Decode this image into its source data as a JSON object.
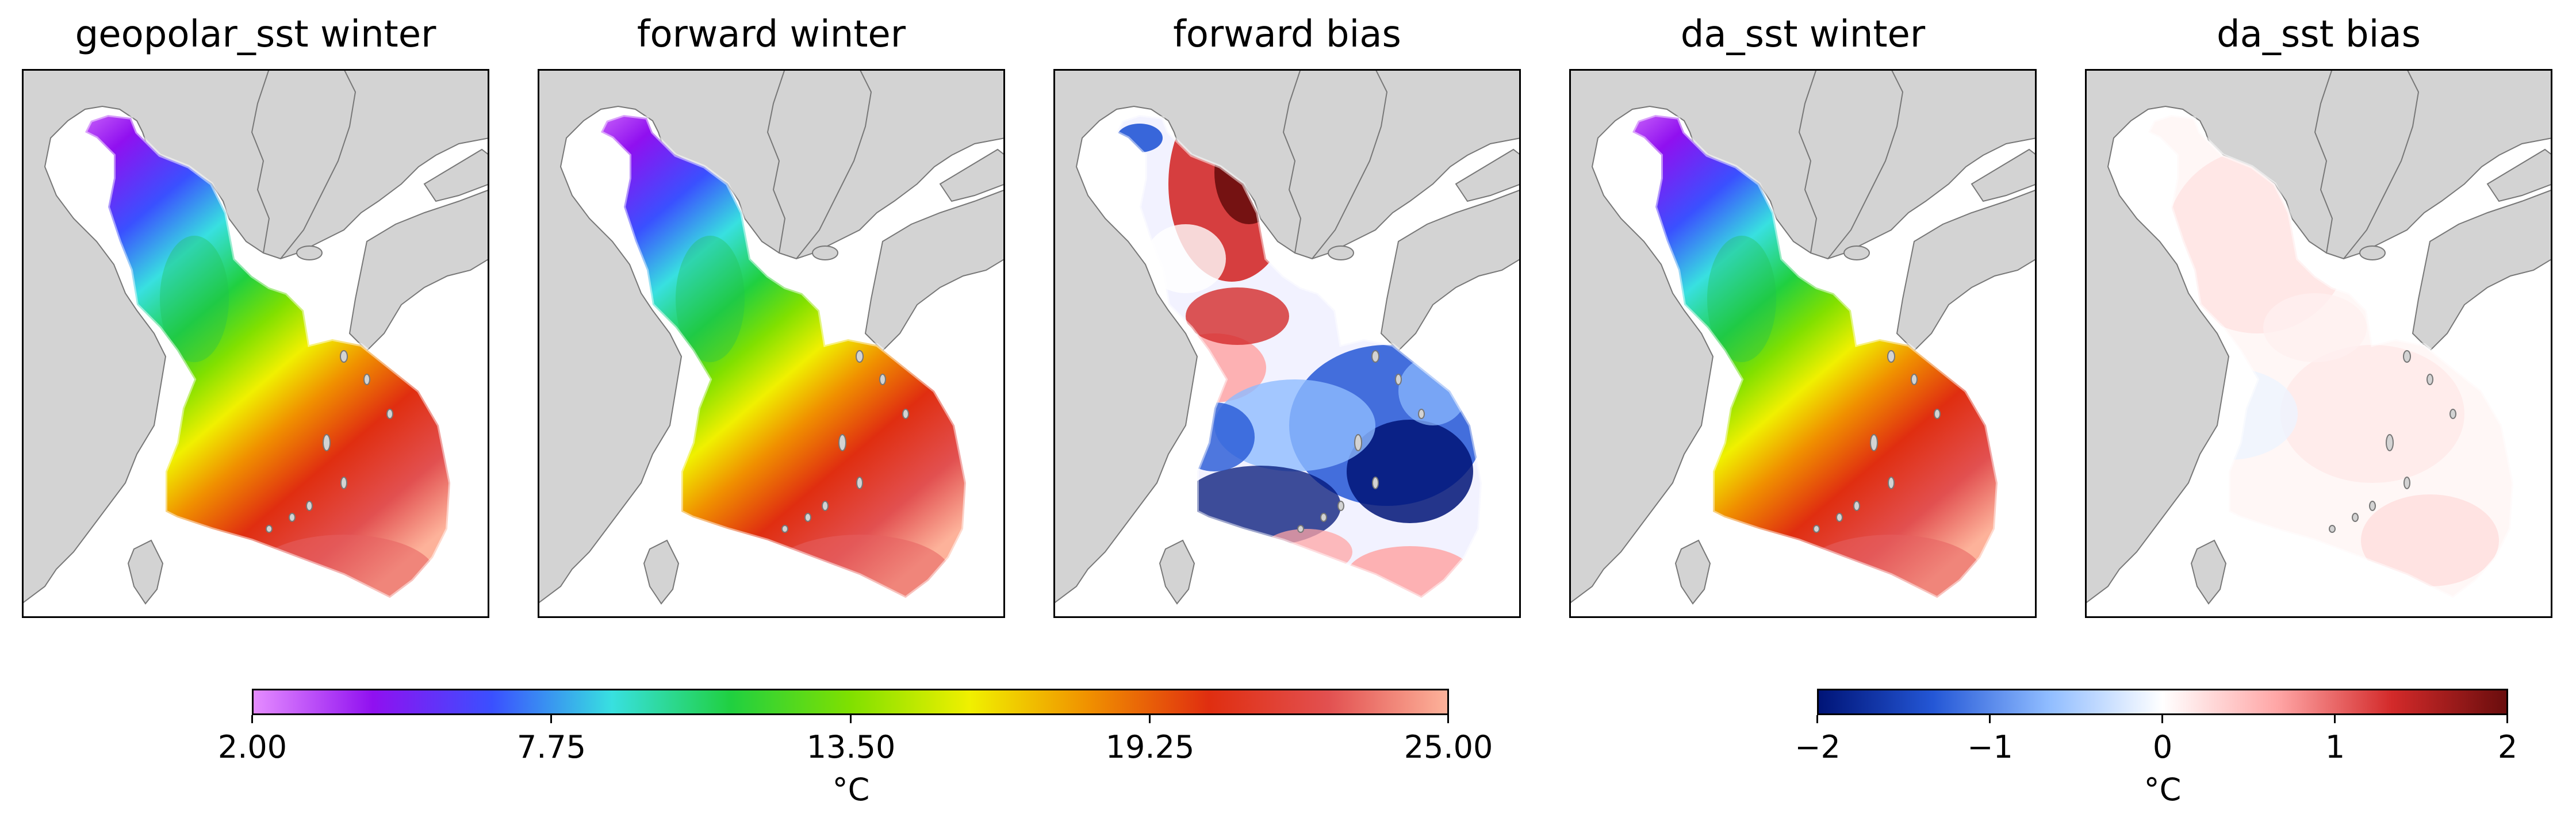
{
  "panels": [
    {
      "id": "p1",
      "title": "geopolar_sst winter",
      "field": "sst"
    },
    {
      "id": "p2",
      "title": "forward winter",
      "field": "sst"
    },
    {
      "id": "p3",
      "title": "forward bias",
      "field": "bias_strong"
    },
    {
      "id": "p4",
      "title": "da_sst winter",
      "field": "sst"
    },
    {
      "id": "p5",
      "title": "da_sst bias",
      "field": "bias_weak"
    }
  ],
  "colorbars": {
    "sst": {
      "ticks": [
        "2.00",
        "7.75",
        "13.50",
        "19.25",
        "25.00"
      ],
      "unit": "°C",
      "range": [
        2,
        25
      ],
      "colors": [
        "#e58cff",
        "#9010f0",
        "#3a50ff",
        "#38e0e0",
        "#20d040",
        "#80e000",
        "#f0f000",
        "#f09000",
        "#e02e10",
        "#e25050",
        "#fdb29a"
      ]
    },
    "bias": {
      "ticks": [
        "−2",
        "−1",
        "0",
        "1",
        "2"
      ],
      "unit": "°C",
      "range": [
        -2,
        2
      ],
      "colors": [
        "#001477",
        "#2457d6",
        "#8fbcff",
        "#ffffff",
        "#ffa6a6",
        "#d32a2a",
        "#6a0d0d"
      ]
    }
  },
  "map_colors": {
    "land": "#d3d3d3",
    "coast": "#777777",
    "unmasked_sea": "#ffffff"
  }
}
